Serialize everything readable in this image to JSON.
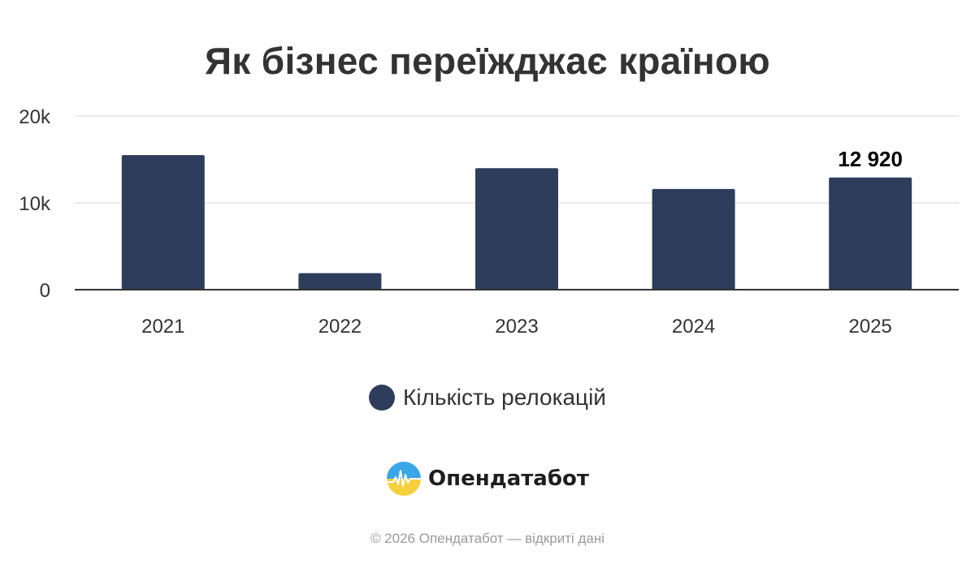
{
  "title": "Як бізнес переїжджає країною",
  "chart_data": {
    "type": "bar",
    "categories": [
      "2021",
      "2022",
      "2023",
      "2024",
      "2025"
    ],
    "series": [
      {
        "name": "Кількість релокацій",
        "values": [
          15500,
          1900,
          14000,
          11600,
          12920
        ],
        "color": "#2e3d5c"
      }
    ],
    "ylim": [
      0,
      20000
    ],
    "y_ticks": [
      {
        "value": 0,
        "label": "0"
      },
      {
        "value": 10000,
        "label": "10k"
      },
      {
        "value": 20000,
        "label": "20k"
      }
    ],
    "data_labels": [
      {
        "category": "2025",
        "text": "12 920"
      }
    ],
    "grid": true,
    "legend_position": "bottom"
  },
  "legend": {
    "label": "Кількість релокацій",
    "color": "#2e3d5c"
  },
  "brand": {
    "name": "Опендатабот"
  },
  "footer": {
    "text": "© 2026 Опендатабот — відкриті дані"
  }
}
